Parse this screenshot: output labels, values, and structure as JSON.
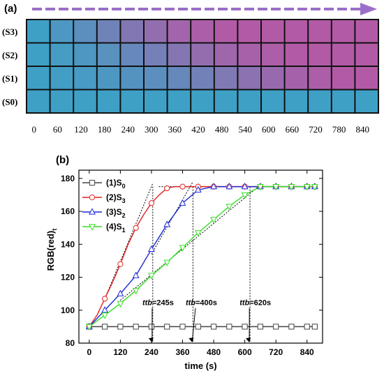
{
  "panel_a": {
    "label": "(a)",
    "rows": [
      "(S3)",
      "(S2)",
      "(S1)",
      "(S0)"
    ],
    "times": [
      "0",
      "60",
      "120",
      "180",
      "240",
      "300",
      "360",
      "420",
      "480",
      "540",
      "600",
      "660",
      "720",
      "780",
      "840"
    ],
    "colors": {
      "blue": "#3fa0c6",
      "purple": "#b35aa6",
      "arrow": "#9b6fc9"
    },
    "purple_level": [
      [
        0,
        0.12,
        0.25,
        0.42,
        0.58,
        0.72,
        0.85,
        0.93,
        0.98,
        1,
        1,
        1,
        1,
        1,
        1
      ],
      [
        0,
        0.05,
        0.12,
        0.22,
        0.34,
        0.46,
        0.6,
        0.72,
        0.82,
        0.9,
        0.95,
        1,
        1,
        1,
        1
      ],
      [
        0,
        0.03,
        0.07,
        0.12,
        0.18,
        0.25,
        0.34,
        0.44,
        0.55,
        0.66,
        0.77,
        0.88,
        0.95,
        1,
        1
      ],
      [
        0,
        0,
        0,
        0,
        0,
        0,
        0,
        0,
        0,
        0,
        0,
        0,
        0,
        0,
        0
      ]
    ]
  },
  "chart_data": {
    "type": "line",
    "panel_label": "(b)",
    "xlabel": "time (s)",
    "ylabel": "RGB(red)",
    "ylabel_sub": "t",
    "xlim": [
      -40,
      900
    ],
    "ylim": [
      80,
      185
    ],
    "xticks": [
      0,
      120,
      240,
      360,
      480,
      600,
      720,
      840
    ],
    "yticks": [
      80,
      100,
      120,
      140,
      160,
      180
    ],
    "legend_position": "top-left",
    "series": [
      {
        "name": "(1)S",
        "sub": "0",
        "color": "#444444",
        "marker": "square",
        "x": [
          0,
          60,
          120,
          180,
          240,
          300,
          360,
          420,
          480,
          540,
          600,
          660,
          720,
          780,
          840,
          870
        ],
        "y": [
          90,
          90,
          90,
          90,
          90,
          90,
          90,
          90,
          90,
          90,
          90,
          90,
          90,
          90,
          90,
          90
        ]
      },
      {
        "name": "(2)S",
        "sub": "3",
        "color": "#e02020",
        "marker": "circle",
        "x": [
          0,
          30,
          60,
          90,
          120,
          150,
          180,
          210,
          240,
          270,
          300,
          330,
          360,
          390,
          420,
          480,
          540,
          600,
          660,
          720,
          780,
          840,
          870
        ],
        "y": [
          90,
          97,
          107,
          117,
          128,
          140,
          150,
          158,
          165,
          170,
          174,
          175,
          175,
          175,
          175,
          175,
          175,
          175,
          175,
          175,
          175,
          175,
          175
        ]
      },
      {
        "name": "(3)S",
        "sub": "2",
        "color": "#1f2ad6",
        "marker": "triangle-up",
        "x": [
          0,
          60,
          120,
          180,
          240,
          300,
          360,
          420,
          480,
          540,
          600,
          660,
          720,
          780,
          840,
          870
        ],
        "y": [
          90,
          100,
          110,
          121,
          137,
          152,
          165,
          173,
          175,
          175,
          175,
          175,
          175,
          175,
          175,
          175
        ]
      },
      {
        "name": "(4)S",
        "sub": "1",
        "color": "#33dd22",
        "marker": "triangle-down",
        "x": [
          0,
          60,
          120,
          180,
          240,
          300,
          360,
          420,
          480,
          540,
          600,
          660,
          720,
          780,
          840,
          870
        ],
        "y": [
          90,
          97,
          104,
          112,
          121,
          129,
          138,
          147,
          155,
          163,
          170,
          175,
          175,
          175,
          175,
          175
        ]
      }
    ],
    "reference_line": {
      "y": 175,
      "x": [
        120,
        870
      ]
    },
    "tangents": [
      {
        "x1": 60,
        "y1": 107,
        "x2": 245,
        "y2": 177
      },
      {
        "x1": 240,
        "y1": 134,
        "x2": 400,
        "y2": 178
      },
      {
        "x1": 120,
        "y1": 106,
        "x2": 660,
        "y2": 176
      }
    ],
    "annotations": [
      {
        "italic": "ttb",
        "text": "=245s",
        "x": 245,
        "ty": 103,
        "tx": 205
      },
      {
        "italic": "ttb",
        "text": "=400s",
        "x": 400,
        "ty": 103,
        "tx": 372
      },
      {
        "italic": "ttb",
        "text": "=620s",
        "x": 620,
        "ty": 103,
        "tx": 580
      }
    ]
  }
}
